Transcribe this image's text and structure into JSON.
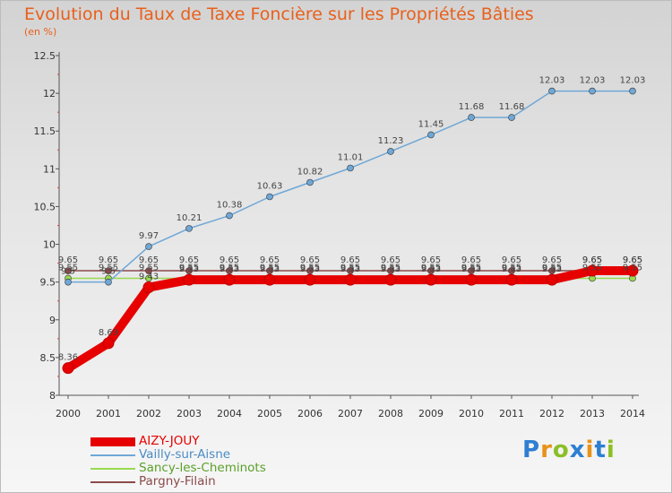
{
  "header": {
    "title": "Evolution du Taux de Taxe Foncière sur les Propriétés Bâties",
    "subtitle": "(en %)"
  },
  "logo": {
    "letters": [
      "P",
      "r",
      "o",
      "x",
      "i",
      "t",
      "i"
    ],
    "colors": [
      "#2e7fd1",
      "#e8921a",
      "#8cbf26",
      "#2e7fd1",
      "#e8921a",
      "#2e7fd1",
      "#8cbf26"
    ]
  },
  "chart_data": {
    "type": "line",
    "title": "Evolution du Taux de Taxe Foncière sur les Propriétés Bâties",
    "ylabel": "(en %)",
    "xlabel": "",
    "ylim": [
      8,
      12.5
    ],
    "yticks": [
      "8",
      "8.5",
      "9",
      "9.5",
      "10",
      "10.5",
      "11",
      "11.5",
      "12",
      "12.5"
    ],
    "grid": false,
    "legend_position": "bottom-left",
    "categories": [
      "2000",
      "2001",
      "2002",
      "2003",
      "2004",
      "2005",
      "2006",
      "2007",
      "2008",
      "2009",
      "2010",
      "2011",
      "2012",
      "2013",
      "2014"
    ],
    "series": [
      {
        "name": "AIZY-JOUY",
        "color": "#e60000",
        "thick": true,
        "values": [
          8.36,
          8.69,
          9.43,
          9.53,
          9.53,
          9.53,
          9.53,
          9.53,
          9.53,
          9.53,
          9.53,
          9.53,
          9.53,
          9.65,
          9.65
        ],
        "labels": [
          "8.36",
          "8.69",
          "9.43",
          "9.53",
          "9.53",
          "9.53",
          "9.53",
          "9.53",
          "9.53",
          "9.53",
          "9.53",
          "9.53",
          "9.53",
          "9.65",
          "9.65"
        ]
      },
      {
        "name": "Vailly-sur-Aisne",
        "color": "#6fa7d6",
        "thick": false,
        "values": [
          9.5,
          9.5,
          9.97,
          10.21,
          10.38,
          10.63,
          10.82,
          11.01,
          11.23,
          11.45,
          11.68,
          11.68,
          12.03,
          12.03,
          12.03
        ],
        "labels": [
          "9.5",
          "9.5",
          "9.97",
          "10.21",
          "10.38",
          "10.63",
          "10.82",
          "11.01",
          "11.23",
          "11.45",
          "11.68",
          "11.68",
          "12.03",
          "12.03",
          "12.03"
        ]
      },
      {
        "name": "Sancy-les-Cheminots",
        "color": "#99d94f",
        "thick": false,
        "values": [
          9.55,
          9.55,
          9.55,
          9.55,
          9.55,
          9.55,
          9.55,
          9.55,
          9.55,
          9.55,
          9.55,
          9.55,
          9.55,
          9.55,
          9.55
        ],
        "labels": [
          "9.55",
          "9.55",
          "9.55",
          "9.55",
          "9.55",
          "9.55",
          "9.55",
          "9.55",
          "9.55",
          "9.55",
          "9.55",
          "9.55",
          "9.55",
          "9.55",
          "9.55"
        ]
      },
      {
        "name": "Pargny-Filain",
        "color": "#8c4a4a",
        "thick": false,
        "values": [
          9.65,
          9.65,
          9.65,
          9.65,
          9.65,
          9.65,
          9.65,
          9.65,
          9.65,
          9.65,
          9.65,
          9.65,
          9.65,
          9.65,
          9.65
        ],
        "labels": [
          "9.65",
          "9.65",
          "9.65",
          "9.65",
          "9.65",
          "9.65",
          "9.65",
          "9.65",
          "9.65",
          "9.65",
          "9.65",
          "9.65",
          "9.65",
          "9.65",
          "9.65"
        ]
      }
    ]
  }
}
